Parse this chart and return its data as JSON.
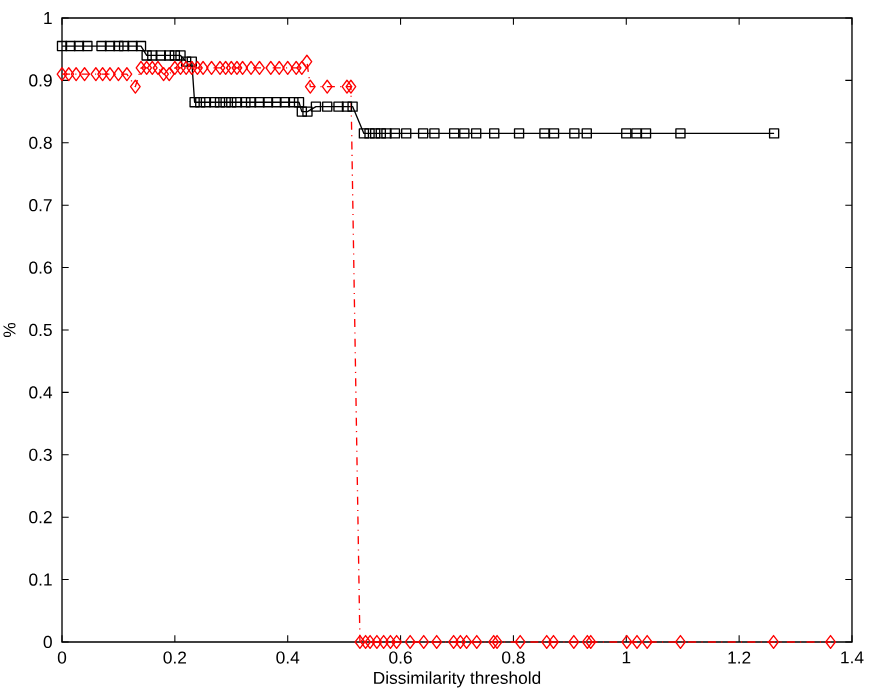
{
  "chart_data": {
    "type": "line",
    "xlabel": "Dissimilarity threshold",
    "ylabel": "%",
    "xlim": [
      0,
      1.4
    ],
    "xticks": [
      0,
      0.2,
      0.4,
      0.6,
      0.8,
      1,
      1.2,
      1.4
    ],
    "ylim": [
      0,
      1
    ],
    "yticks": [
      0,
      0.1,
      0.2,
      0.3,
      0.4,
      0.5,
      0.6,
      0.7,
      0.8,
      0.9,
      1
    ],
    "series": [
      {
        "color": "#000000",
        "marker": "square",
        "line_style": "solid",
        "x": [
          0.0,
          0.015,
          0.03,
          0.045,
          0.07,
          0.085,
          0.1,
          0.11,
          0.125,
          0.14,
          0.15,
          0.16,
          0.175,
          0.19,
          0.2,
          0.21,
          0.22,
          0.23,
          0.235,
          0.245,
          0.255,
          0.27,
          0.28,
          0.29,
          0.3,
          0.31,
          0.325,
          0.335,
          0.35,
          0.365,
          0.38,
          0.395,
          0.41,
          0.42,
          0.425,
          0.435,
          0.45,
          0.47,
          0.49,
          0.505,
          0.515,
          0.535,
          0.545,
          0.555,
          0.565,
          0.575,
          0.59,
          0.61,
          0.64,
          0.66,
          0.695,
          0.713,
          0.734,
          0.766,
          0.81,
          0.855,
          0.872,
          0.908,
          0.93,
          1.0,
          1.018,
          1.035,
          1.096,
          1.262
        ],
        "values": [
          0.955,
          0.955,
          0.955,
          0.955,
          0.955,
          0.955,
          0.955,
          0.955,
          0.955,
          0.955,
          0.94,
          0.94,
          0.94,
          0.94,
          0.94,
          0.94,
          0.93,
          0.93,
          0.865,
          0.865,
          0.865,
          0.865,
          0.865,
          0.865,
          0.865,
          0.865,
          0.865,
          0.865,
          0.865,
          0.865,
          0.865,
          0.865,
          0.865,
          0.865,
          0.85,
          0.85,
          0.858,
          0.858,
          0.858,
          0.858,
          0.858,
          0.815,
          0.815,
          0.815,
          0.815,
          0.815,
          0.815,
          0.815,
          0.815,
          0.815,
          0.815,
          0.815,
          0.815,
          0.815,
          0.815,
          0.815,
          0.815,
          0.815,
          0.815,
          0.815,
          0.815,
          0.815,
          0.815,
          0.815
        ]
      },
      {
        "color": "#ff0000",
        "marker": "diamond",
        "line_style": "dashdotted",
        "x": [
          0.0,
          0.012,
          0.025,
          0.04,
          0.06,
          0.072,
          0.085,
          0.1,
          0.115,
          0.13,
          0.14,
          0.15,
          0.16,
          0.17,
          0.18,
          0.19,
          0.2,
          0.21,
          0.22,
          0.23,
          0.24,
          0.25,
          0.265,
          0.28,
          0.29,
          0.3,
          0.31,
          0.32,
          0.335,
          0.35,
          0.37,
          0.385,
          0.4,
          0.415,
          0.425,
          0.434,
          0.44,
          0.47,
          0.505,
          0.512,
          0.528,
          0.538,
          0.546,
          0.558,
          0.57,
          0.582,
          0.593,
          0.617,
          0.641,
          0.664,
          0.694,
          0.706,
          0.717,
          0.735,
          0.765,
          0.771,
          0.812,
          0.859,
          0.871,
          0.907,
          0.931,
          0.937,
          1.001,
          1.019,
          1.037,
          1.096,
          1.261,
          1.362
        ],
        "values": [
          0.91,
          0.91,
          0.91,
          0.91,
          0.91,
          0.91,
          0.91,
          0.91,
          0.91,
          0.89,
          0.92,
          0.92,
          0.92,
          0.92,
          0.91,
          0.91,
          0.92,
          0.92,
          0.92,
          0.92,
          0.92,
          0.92,
          0.92,
          0.92,
          0.92,
          0.92,
          0.92,
          0.92,
          0.92,
          0.92,
          0.92,
          0.92,
          0.92,
          0.92,
          0.92,
          0.93,
          0.89,
          0.89,
          0.89,
          0.89,
          0,
          0,
          0,
          0,
          0,
          0,
          0,
          0,
          0,
          0,
          0,
          0,
          0,
          0,
          0,
          0,
          0,
          0,
          0,
          0,
          0,
          0,
          0,
          0,
          0,
          0,
          0,
          0
        ]
      }
    ]
  }
}
